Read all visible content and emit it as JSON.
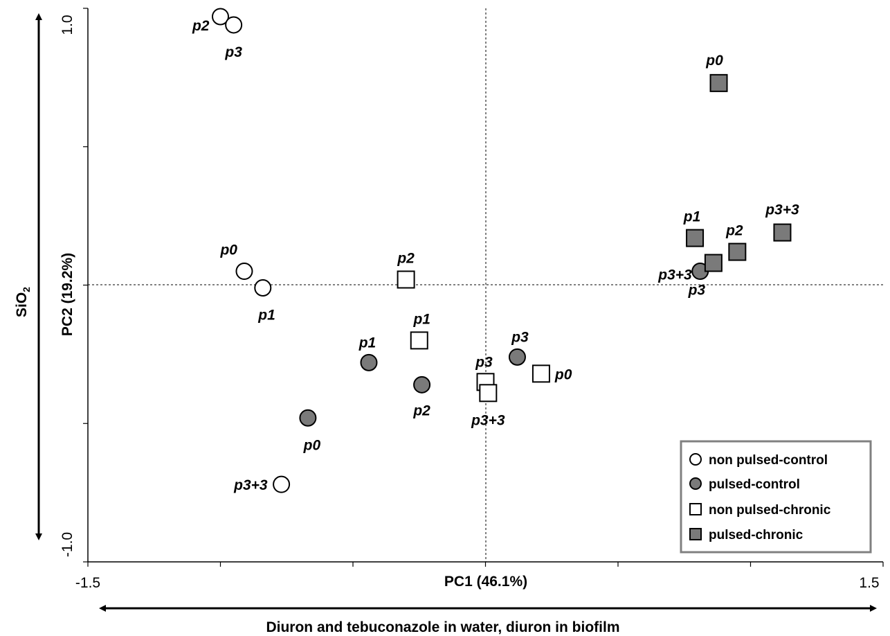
{
  "chart_data": {
    "type": "scatter",
    "xlabel": "PC1 (46.1%)",
    "ylabel": "PC2 (19.2%)",
    "xlim": [
      -1.5,
      1.5
    ],
    "ylim": [
      -1.0,
      1.0
    ],
    "x_tick_labels": [
      "-1.5",
      "1.5"
    ],
    "y_tick_labels": [
      "1.0",
      "-1.0"
    ],
    "grid": false,
    "zero_guides": true,
    "legend_position": "bottom-right",
    "x_arrow_label": "Diuron and tebuconazole in water, diuron in biofilm",
    "y_arrow_label": "SiO",
    "y_arrow_label_subscript": "2",
    "series": [
      {
        "name": "non pulsed-control",
        "marker": "circle",
        "fill": "#ffffff",
        "points": [
          {
            "label": "p0",
            "x": -0.91,
            "y": 0.05
          },
          {
            "label": "p1",
            "x": -0.84,
            "y": -0.01
          },
          {
            "label": "p2",
            "x": -1.0,
            "y": 0.97
          },
          {
            "label": "p3",
            "x": -0.95,
            "y": 0.94
          },
          {
            "label": "p3+3",
            "x": -0.77,
            "y": -0.72
          }
        ]
      },
      {
        "name": "pulsed-control",
        "marker": "circle",
        "fill": "#7a7a7a",
        "points": [
          {
            "label": "p0",
            "x": -0.67,
            "y": -0.48
          },
          {
            "label": "p1",
            "x": -0.44,
            "y": -0.28
          },
          {
            "label": "p2",
            "x": -0.24,
            "y": -0.36
          },
          {
            "label": "p3",
            "x": 0.12,
            "y": -0.26
          },
          {
            "label": "p3+3",
            "x": 0.81,
            "y": 0.05
          }
        ]
      },
      {
        "name": "non pulsed-chronic",
        "marker": "square",
        "fill": "#ffffff",
        "points": [
          {
            "label": "p0",
            "x": 0.21,
            "y": -0.32
          },
          {
            "label": "p1",
            "x": -0.25,
            "y": -0.2
          },
          {
            "label": "p2",
            "x": -0.3,
            "y": 0.02
          },
          {
            "label": "p3",
            "x": 0.0,
            "y": -0.35
          },
          {
            "label": "p3+3",
            "x": 0.01,
            "y": -0.39
          }
        ]
      },
      {
        "name": "pulsed-chronic",
        "marker": "square",
        "fill": "#7a7a7a",
        "points": [
          {
            "label": "p0",
            "x": 0.88,
            "y": 0.73
          },
          {
            "label": "p1",
            "x": 0.79,
            "y": 0.17
          },
          {
            "label": "p2",
            "x": 0.95,
            "y": 0.12
          },
          {
            "label": "p3",
            "x": 0.86,
            "y": 0.08
          },
          {
            "label": "p3+3",
            "x": 1.12,
            "y": 0.19
          }
        ]
      }
    ]
  }
}
